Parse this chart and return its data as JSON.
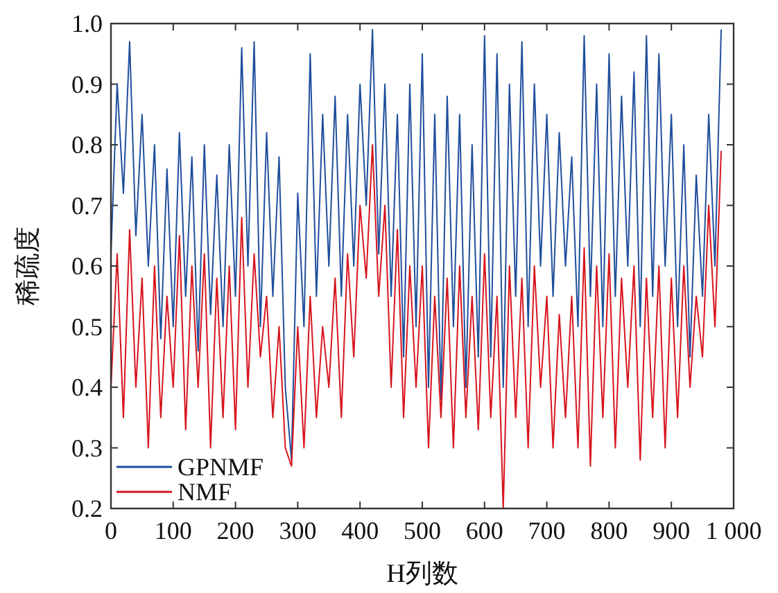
{
  "chart_data": {
    "type": "line",
    "xlabel": "H列数",
    "ylabel": "稀疏度",
    "x": [
      0,
      10,
      20,
      30,
      40,
      50,
      60,
      70,
      80,
      90,
      100,
      110,
      120,
      130,
      140,
      150,
      160,
      170,
      180,
      190,
      200,
      210,
      220,
      230,
      240,
      250,
      260,
      270,
      280,
      290,
      300,
      310,
      320,
      330,
      340,
      350,
      360,
      370,
      380,
      390,
      400,
      410,
      420,
      430,
      440,
      450,
      460,
      470,
      480,
      490,
      500,
      510,
      520,
      530,
      540,
      550,
      560,
      570,
      580,
      590,
      600,
      610,
      620,
      630,
      640,
      650,
      660,
      670,
      680,
      690,
      700,
      710,
      720,
      730,
      740,
      750,
      760,
      770,
      780,
      790,
      800,
      810,
      820,
      830,
      840,
      850,
      860,
      870,
      880,
      890,
      900,
      910,
      920,
      930,
      940,
      950,
      960,
      970,
      980
    ],
    "series": [
      {
        "name": "GPNMF",
        "color": "#1f4e9c",
        "values": [
          0.62,
          0.9,
          0.72,
          0.97,
          0.65,
          0.85,
          0.6,
          0.8,
          0.48,
          0.76,
          0.5,
          0.82,
          0.55,
          0.78,
          0.46,
          0.8,
          0.52,
          0.75,
          0.5,
          0.8,
          0.55,
          0.96,
          0.6,
          0.97,
          0.5,
          0.82,
          0.55,
          0.78,
          0.4,
          0.28,
          0.72,
          0.5,
          0.95,
          0.55,
          0.85,
          0.6,
          0.88,
          0.55,
          0.85,
          0.6,
          0.9,
          0.7,
          0.99,
          0.62,
          0.9,
          0.55,
          0.85,
          0.45,
          0.9,
          0.5,
          0.95,
          0.4,
          0.85,
          0.38,
          0.88,
          0.5,
          0.85,
          0.4,
          0.8,
          0.45,
          0.98,
          0.45,
          0.95,
          0.4,
          0.9,
          0.55,
          0.97,
          0.5,
          0.9,
          0.6,
          0.85,
          0.55,
          0.82,
          0.6,
          0.78,
          0.5,
          0.98,
          0.55,
          0.9,
          0.5,
          0.95,
          0.55,
          0.88,
          0.6,
          0.92,
          0.5,
          0.98,
          0.55,
          0.95,
          0.6,
          0.85,
          0.5,
          0.8,
          0.45,
          0.75,
          0.55,
          0.85,
          0.6,
          0.99
        ]
      },
      {
        "name": "NMF",
        "color": "#d7141d",
        "values": [
          0.4,
          0.62,
          0.35,
          0.66,
          0.4,
          0.58,
          0.3,
          0.6,
          0.35,
          0.55,
          0.4,
          0.65,
          0.33,
          0.6,
          0.4,
          0.62,
          0.3,
          0.58,
          0.35,
          0.6,
          0.33,
          0.68,
          0.4,
          0.62,
          0.45,
          0.55,
          0.35,
          0.5,
          0.3,
          0.27,
          0.5,
          0.3,
          0.55,
          0.35,
          0.5,
          0.4,
          0.58,
          0.35,
          0.62,
          0.45,
          0.7,
          0.58,
          0.8,
          0.55,
          0.7,
          0.4,
          0.66,
          0.35,
          0.6,
          0.4,
          0.6,
          0.3,
          0.55,
          0.35,
          0.58,
          0.3,
          0.6,
          0.35,
          0.55,
          0.33,
          0.62,
          0.35,
          0.55,
          0.2,
          0.6,
          0.35,
          0.58,
          0.3,
          0.6,
          0.4,
          0.55,
          0.3,
          0.52,
          0.35,
          0.55,
          0.3,
          0.63,
          0.27,
          0.6,
          0.35,
          0.62,
          0.3,
          0.58,
          0.4,
          0.6,
          0.28,
          0.58,
          0.35,
          0.6,
          0.3,
          0.58,
          0.35,
          0.6,
          0.4,
          0.55,
          0.45,
          0.7,
          0.5,
          0.79
        ]
      }
    ],
    "xlim": [
      0,
      1000
    ],
    "xticks": [
      0,
      100,
      200,
      300,
      400,
      500,
      600,
      700,
      800,
      900,
      {
        "value": 1000,
        "label": "1 000"
      }
    ],
    "ylim": [
      0.2,
      1.0
    ],
    "yticks": [
      0.2,
      0.3,
      0.4,
      0.5,
      0.6,
      0.7,
      0.8,
      0.9,
      {
        "value": 1.0,
        "label": "1.0"
      }
    ],
    "legend": "bottom left",
    "grid": false,
    "marker": "none",
    "line_style": "solid"
  }
}
